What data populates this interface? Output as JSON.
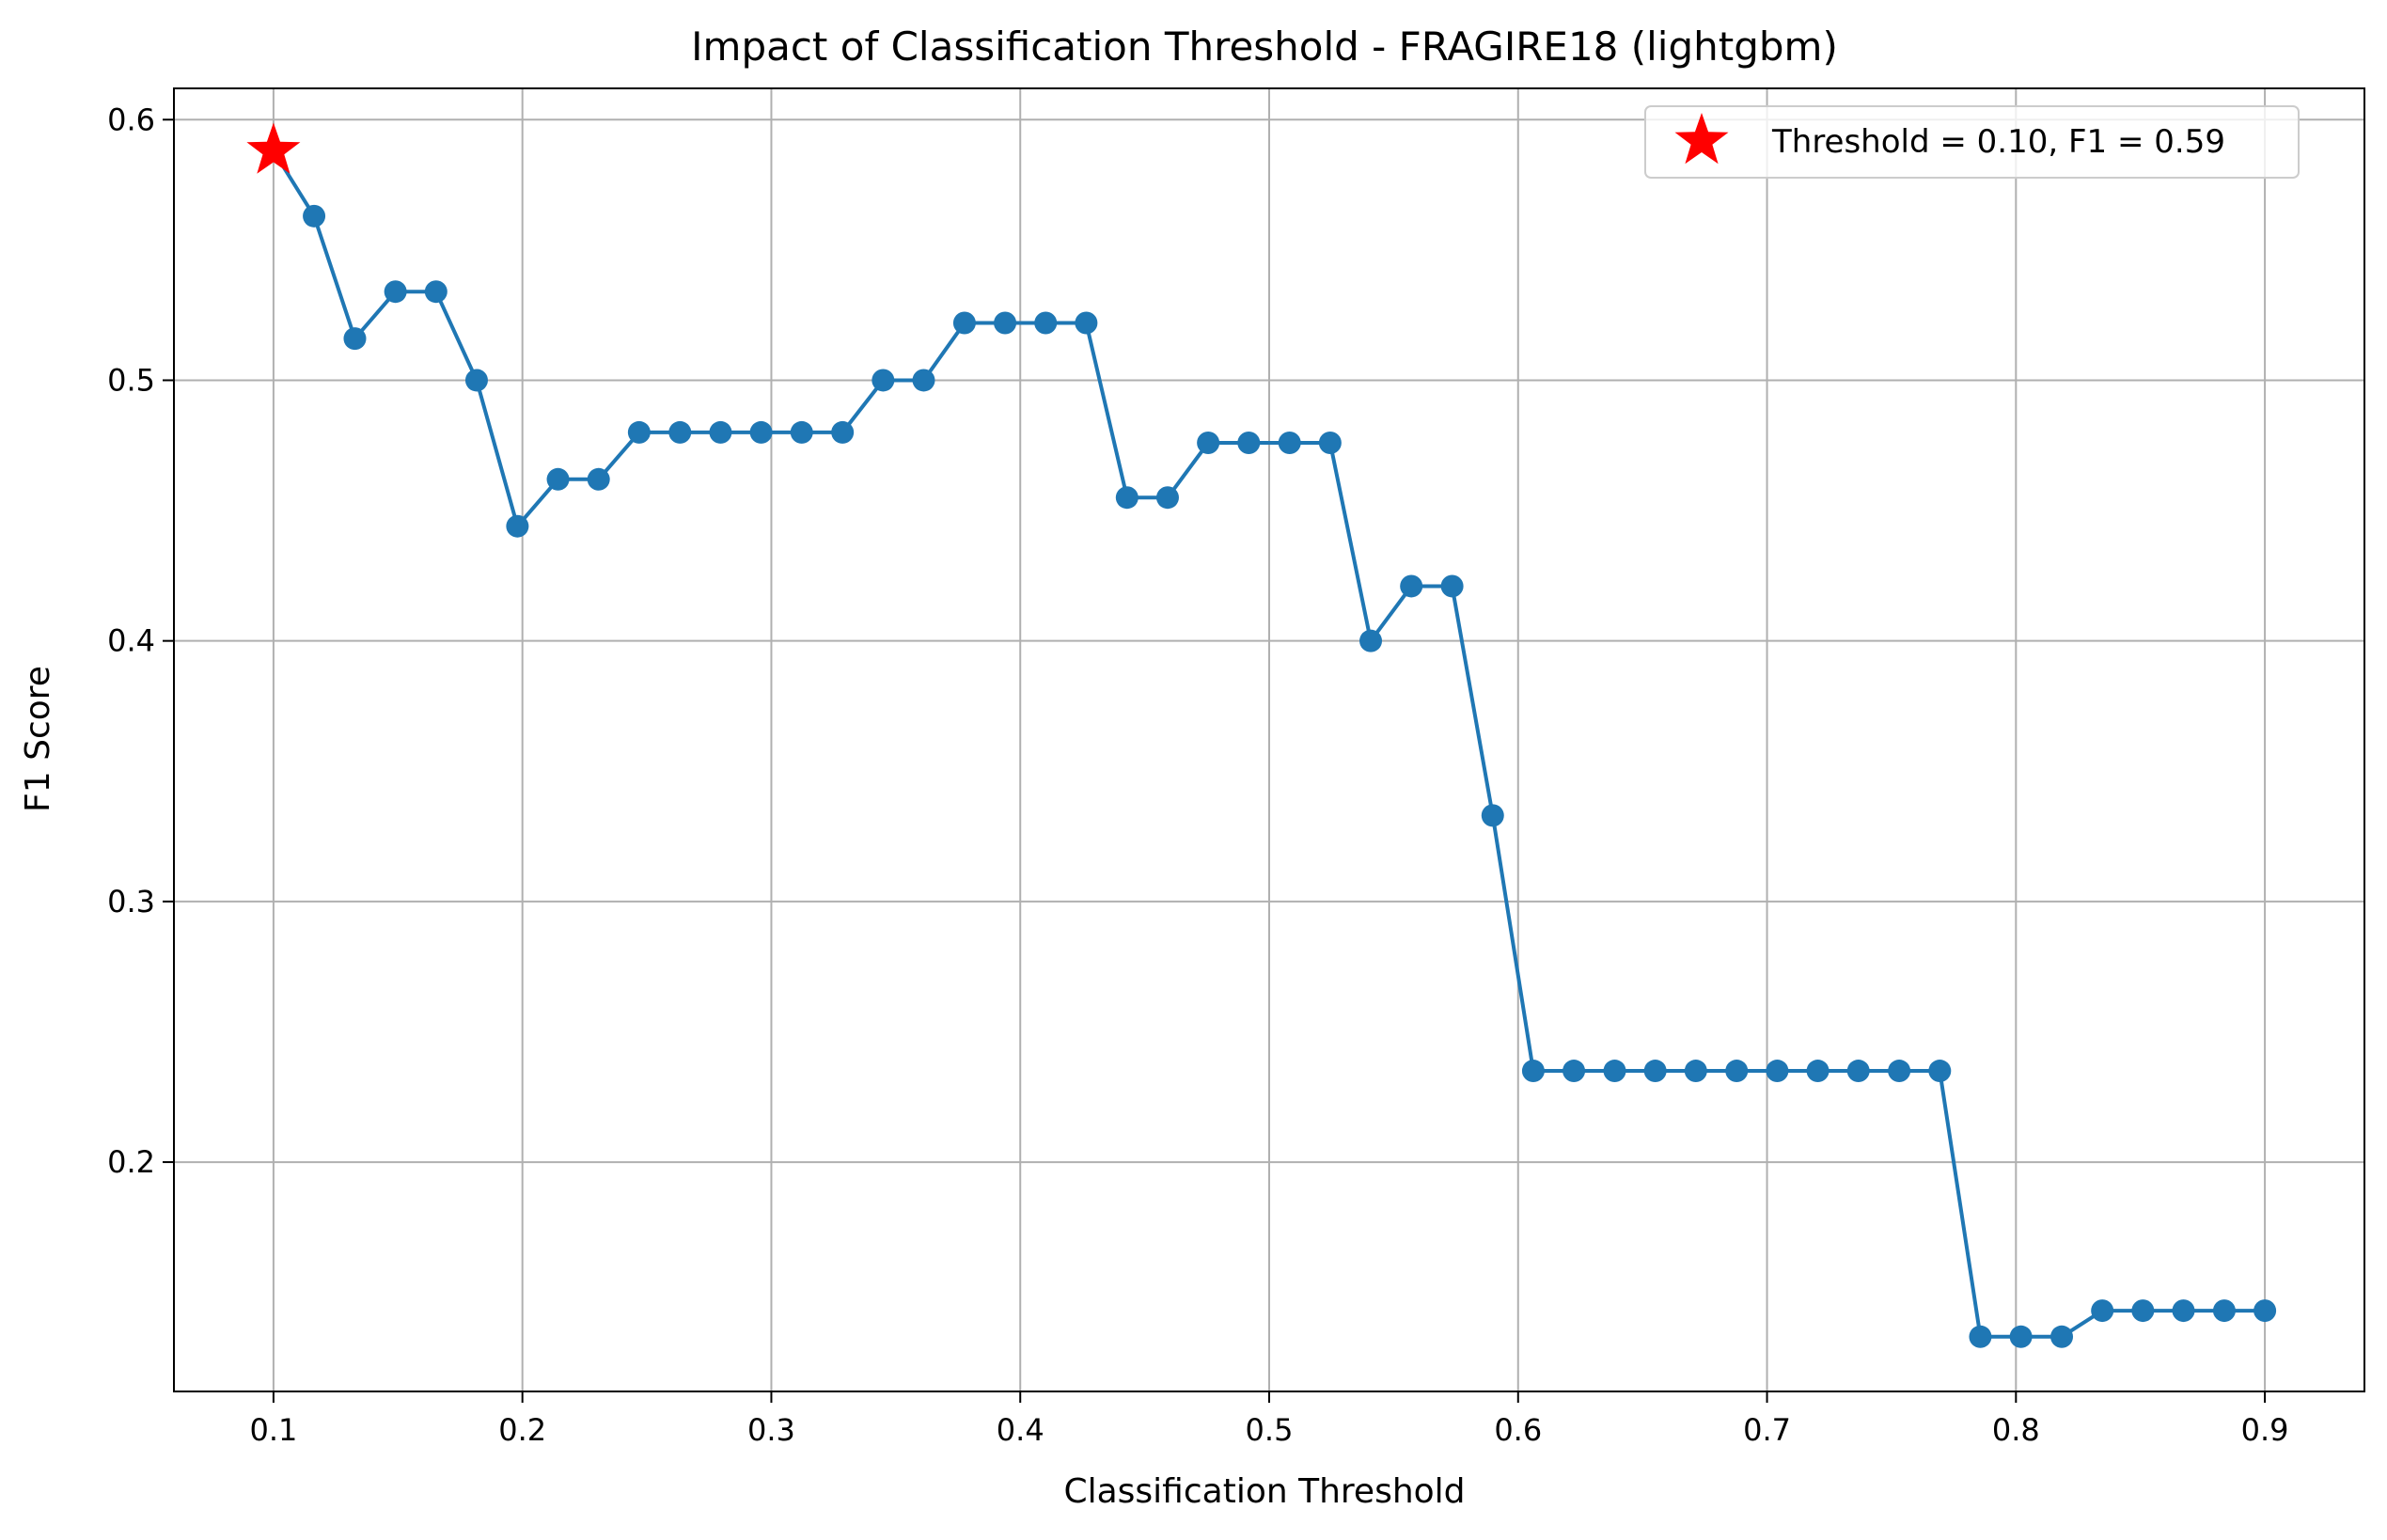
{
  "chart_data": {
    "type": "line",
    "title": "Impact of Classification Threshold - FRAGIRE18 (lightgbm)",
    "xlabel": "Classification Threshold",
    "ylabel": "F1 Score",
    "xlim": [
      0.06,
      0.94
    ],
    "ylim": [
      0.112,
      0.612
    ],
    "xticks": [
      0.1,
      0.2,
      0.3,
      0.4,
      0.5,
      0.6,
      0.7,
      0.8,
      0.9
    ],
    "xtick_labels": [
      "0.1",
      "0.2",
      "0.3",
      "0.4",
      "0.5",
      "0.6",
      "0.7",
      "0.8",
      "0.9"
    ],
    "yticks": [
      0.2,
      0.3,
      0.4,
      0.5,
      0.6
    ],
    "ytick_labels": [
      "0.2",
      "0.3",
      "0.4",
      "0.5",
      "0.6"
    ],
    "grid": true,
    "legend_position": "top-right",
    "series": [
      {
        "color": "#1f77b4",
        "marker": "circle",
        "x": [
          0.1,
          0.1163,
          0.1327,
          0.149,
          0.1653,
          0.1816,
          0.198,
          0.2143,
          0.2306,
          0.2469,
          0.2633,
          0.2796,
          0.2959,
          0.3122,
          0.3286,
          0.3449,
          0.3612,
          0.3776,
          0.3939,
          0.4102,
          0.4265,
          0.4429,
          0.4592,
          0.4755,
          0.4918,
          0.5082,
          0.5245,
          0.5408,
          0.5571,
          0.5735,
          0.5898,
          0.6061,
          0.6224,
          0.6388,
          0.6551,
          0.6714,
          0.6878,
          0.7041,
          0.7204,
          0.7367,
          0.7531,
          0.7694,
          0.7857,
          0.802,
          0.8184,
          0.8347,
          0.851,
          0.8673,
          0.8837,
          0.9
        ],
        "y": [
          0.588,
          0.563,
          0.516,
          0.534,
          0.534,
          0.5,
          0.444,
          0.462,
          0.462,
          0.48,
          0.48,
          0.48,
          0.48,
          0.48,
          0.48,
          0.5,
          0.5,
          0.522,
          0.522,
          0.522,
          0.522,
          0.455,
          0.455,
          0.476,
          0.476,
          0.476,
          0.476,
          0.4,
          0.421,
          0.421,
          0.333,
          0.235,
          0.235,
          0.235,
          0.235,
          0.235,
          0.235,
          0.235,
          0.235,
          0.235,
          0.235,
          0.235,
          0.133,
          0.133,
          0.133,
          0.143,
          0.143,
          0.143,
          0.143,
          0.143
        ]
      }
    ],
    "highlight": {
      "name": "Threshold = 0.10, F1 = 0.59",
      "x": 0.1,
      "y": 0.588,
      "color": "#ff0000",
      "marker": "star"
    }
  }
}
